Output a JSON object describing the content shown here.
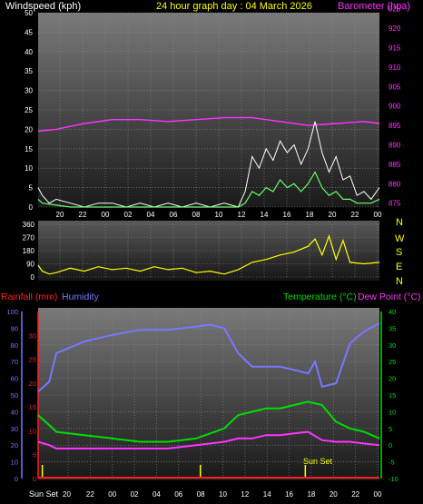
{
  "header": {
    "title": "24 hour graph day : 04 March 2026",
    "wind_label": "Windspeed (kph)",
    "baro_label": "Barometer (hpa)"
  },
  "colors": {
    "wind_label": "#ffffff",
    "title": "#ffff00",
    "barometer": "#ff33ff",
    "gust": "#ffffff",
    "avg_wind": "#66ff66",
    "direction": "#ffff00",
    "rainfall": "#ff2020",
    "humidity": "#7777ff",
    "temperature": "#00dd00",
    "dewpoint": "#ff33ff",
    "sun": "#ffff00"
  },
  "compass": [
    "N",
    "W",
    "S",
    "E",
    "N"
  ],
  "bottom": {
    "rain_label": "Rainfall (mm)",
    "hum_label": "Humidity",
    "temp_label": "Temperature (°C)",
    "dew_label": "Dew Point (°C)",
    "sunset_left": "Sun Set",
    "sunset_mid": "Sun Set"
  },
  "chart_data": [
    {
      "type": "line",
      "panel": "wind",
      "x_ticks": [
        "20",
        "22",
        "00",
        "02",
        "04",
        "06",
        "08",
        "10",
        "12",
        "14",
        "16",
        "18",
        "20",
        "22",
        "00"
      ],
      "y_left_ticks": [
        0,
        5,
        10,
        15,
        20,
        25,
        30,
        35,
        40,
        45,
        50
      ],
      "y_left_range": [
        0,
        50
      ],
      "y_right_ticks": [
        875,
        880,
        885,
        890,
        895,
        900,
        905,
        910,
        915,
        920,
        925
      ],
      "y_right_range": [
        874,
        924
      ],
      "x_range_hours": [
        18.7,
        43.1
      ],
      "series": [
        {
          "key": "barometer",
          "x": [
            18.7,
            20,
            22,
            24,
            26,
            28,
            30,
            32,
            34,
            36,
            38,
            40,
            42,
            43.1
          ],
          "values": [
            893.5,
            894,
            895.5,
            896.5,
            896.5,
            896,
            896.5,
            897,
            897,
            896,
            895,
            895.5,
            896,
            895.5
          ]
        },
        {
          "key": "gust",
          "x": [
            18.7,
            19,
            19.5,
            20,
            21,
            22,
            23,
            24,
            25,
            26,
            27,
            28,
            29,
            30,
            31,
            32,
            33,
            33.5,
            34,
            34.5,
            35,
            35.5,
            36,
            36.5,
            37,
            37.5,
            38,
            38.5,
            39,
            39.5,
            40,
            40.5,
            41,
            41.5,
            42,
            42.5,
            43.1
          ],
          "values": [
            5,
            3,
            1,
            2,
            1,
            0,
            1,
            1,
            0,
            1,
            0,
            1,
            0,
            1,
            0,
            1,
            0,
            4,
            13,
            10,
            15,
            12,
            17,
            14,
            16,
            11,
            15,
            22,
            14,
            9,
            13,
            7,
            8,
            3,
            4,
            2,
            5
          ]
        },
        {
          "key": "avg_wind",
          "x": [
            18.7,
            19,
            20,
            21,
            22,
            24,
            26,
            28,
            30,
            32,
            33,
            33.5,
            34,
            34.5,
            35,
            35.5,
            36,
            36.5,
            37,
            37.5,
            38,
            38.5,
            39,
            39.5,
            40,
            40.5,
            41,
            41.5,
            42,
            42.5,
            43.1
          ],
          "values": [
            2,
            1,
            0.5,
            0,
            0,
            0,
            0,
            0,
            0,
            0,
            0,
            1,
            4,
            3,
            5,
            4,
            7,
            5,
            6,
            4,
            6,
            9,
            5,
            3,
            4,
            2,
            2,
            1,
            1,
            1,
            2
          ]
        }
      ]
    },
    {
      "type": "line",
      "panel": "direction",
      "x_ticks": [
        "20",
        "22",
        "00",
        "02",
        "04",
        "06",
        "08",
        "10",
        "12",
        "14",
        "16",
        "18",
        "20",
        "22",
        "00"
      ],
      "y_ticks": [
        0,
        90,
        180,
        270,
        360
      ],
      "y_range": [
        0,
        360
      ],
      "x_range_hours": [
        18.7,
        43.1
      ],
      "series": [
        {
          "key": "direction",
          "x": [
            18.7,
            19,
            19.5,
            20,
            21,
            22,
            23,
            24,
            25,
            26,
            27,
            28,
            29,
            30,
            31,
            32,
            33,
            34,
            35,
            36,
            37,
            38,
            38.5,
            39,
            39.5,
            40,
            40.5,
            41,
            42,
            43.1
          ],
          "values": [
            80,
            40,
            20,
            30,
            60,
            40,
            70,
            50,
            60,
            40,
            70,
            50,
            60,
            30,
            40,
            20,
            50,
            100,
            120,
            150,
            170,
            210,
            260,
            150,
            280,
            120,
            250,
            100,
            90,
            100
          ]
        }
      ]
    },
    {
      "type": "line",
      "panel": "temp_hum_rain",
      "x_ticks": [
        "20",
        "22",
        "00",
        "02",
        "04",
        "06",
        "08",
        "10",
        "12",
        "14",
        "16",
        "18",
        "20",
        "22",
        "00"
      ],
      "x_first_label": "Sun Set",
      "y_hum_ticks": [
        0,
        10,
        20,
        30,
        40,
        50,
        60,
        70,
        80,
        90,
        100
      ],
      "y_hum_range": [
        0,
        100
      ],
      "y_rain_ticks": [
        0,
        5,
        10,
        15,
        20,
        25,
        30
      ],
      "y_rain_range": [
        0,
        35
      ],
      "y_temp_ticks": [
        -10,
        -5,
        0,
        5,
        10,
        15,
        20,
        25,
        30,
        35,
        40
      ],
      "y_temp_range": [
        -10,
        40
      ],
      "x_range_hours": [
        18.7,
        43.1
      ],
      "series": [
        {
          "key": "humidity",
          "x": [
            18.7,
            19.5,
            20,
            22,
            24,
            26,
            28,
            30,
            31,
            32,
            33,
            34,
            35,
            36,
            37,
            38,
            38.5,
            39,
            40,
            41,
            42,
            43.1
          ],
          "values": [
            52,
            58,
            75,
            82,
            86,
            89,
            89,
            91,
            92,
            90,
            75,
            67,
            67,
            67,
            65,
            63,
            70,
            55,
            57,
            81,
            88,
            93
          ]
        },
        {
          "key": "temperature",
          "x": [
            18.7,
            19.5,
            20,
            22,
            24,
            26,
            28,
            30,
            32,
            33,
            34,
            35,
            36,
            37,
            38,
            39,
            40,
            41,
            42,
            43.1
          ],
          "values": [
            9,
            6,
            4,
            3,
            2,
            1,
            1,
            2,
            5,
            9,
            10,
            11,
            11,
            12,
            13,
            12,
            7,
            5,
            4,
            2
          ]
        },
        {
          "key": "dewpoint",
          "x": [
            18.7,
            19.5,
            20,
            22,
            24,
            26,
            28,
            30,
            32,
            33,
            34,
            35,
            36,
            37,
            38,
            39,
            40,
            41,
            42,
            43.1
          ],
          "values": [
            1,
            0,
            -1,
            -1,
            -1,
            -1,
            -1,
            0,
            1,
            2,
            2,
            3,
            3,
            3.5,
            4,
            1.5,
            1,
            1,
            0.5,
            0
          ]
        }
      ],
      "rain_value": 0,
      "sun_markers": [
        19.0,
        30.3,
        37.8
      ]
    }
  ]
}
